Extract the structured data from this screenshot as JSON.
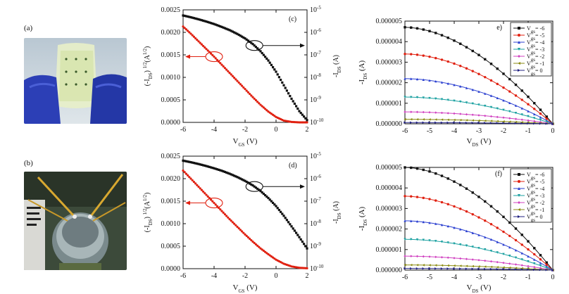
{
  "photos": [
    {
      "tag": "(a)",
      "description_icon": "flexible-device-photo"
    },
    {
      "tag": "(b)",
      "description_icon": "bent-device-probe-photo"
    }
  ],
  "chart_data": [
    {
      "id": "c",
      "panel_label": "(c)",
      "type": "line",
      "xlabel_main": "V",
      "xlabel_sub": "GS",
      "xlabel_unit": " (V)",
      "ylabel_left": "(-I<sub>DS</sub>)<sup>1/2</sup>(A<sup>1/2</sup>)",
      "ylabel_left_plain": "(-I",
      "ylabel_left_sub": "DS",
      "ylabel_left_rest": ")",
      "ylabel_left_sup": "1/2",
      "ylabel_left_unit": "(A",
      "ylabel_left_unit_sup": "1/2",
      "ylabel_left_unit_end": ")",
      "ylabel_right_main": "-I",
      "ylabel_right_sub": "DS",
      "ylabel_right_unit": " (A)",
      "xlim": [
        -6,
        2
      ],
      "xticks": [
        "-6",
        "-4",
        "-2",
        "0",
        "2"
      ],
      "ylim_left": [
        0,
        0.0025
      ],
      "yticks_left": [
        "0.0000",
        "0.0005",
        "0.0010",
        "0.0015",
        "0.0020",
        "0.0025"
      ],
      "yticks_right_exp": [
        "-10",
        "-9",
        "-8",
        "-7",
        "-6",
        "-5"
      ],
      "ylim_right_log": [
        -10,
        -5
      ],
      "series": [
        {
          "color": "#e02010",
          "axis": "left",
          "x": [
            -6,
            -5.5,
            -5,
            -4.5,
            -4,
            -3.5,
            -3,
            -2.5,
            -2,
            -1.5,
            -1,
            -0.5,
            0,
            0.5,
            1,
            1.5,
            2
          ],
          "y": [
            0.00213,
            0.00197,
            0.0018,
            0.00163,
            0.00146,
            0.00128,
            0.0011,
            0.00092,
            0.00074,
            0.00056,
            0.00039,
            0.00024,
            0.00012,
            4e-05,
            1e-05,
            0.0,
            0.0
          ]
        },
        {
          "color": "#111111",
          "axis": "right_log",
          "x": [
            -6,
            -5.5,
            -5,
            -4.5,
            -4,
            -3.5,
            -3,
            -2.5,
            -2,
            -1.5,
            -1,
            -0.5,
            0,
            0.5,
            1,
            1.5,
            2
          ],
          "y": [
            -5.25,
            -5.33,
            -5.42,
            -5.52,
            -5.63,
            -5.76,
            -5.9,
            -6.07,
            -6.27,
            -6.52,
            -6.84,
            -7.25,
            -7.75,
            -8.35,
            -8.95,
            -9.5,
            -9.9
          ]
        }
      ]
    },
    {
      "id": "d",
      "panel_label": "(d)",
      "type": "line",
      "xlabel_main": "V",
      "xlabel_sub": "GS",
      "xlabel_unit": " (V)",
      "ylabel_left_plain": "(-I",
      "ylabel_left_sub": "DS",
      "ylabel_left_rest": ")",
      "ylabel_left_sup": "1/2",
      "ylabel_left_unit": "(A",
      "ylabel_left_unit_sup": "1/2",
      "ylabel_left_unit_end": ")",
      "ylabel_right_main": "-I",
      "ylabel_right_sub": "DS",
      "ylabel_right_unit": " (A)",
      "xlim": [
        -6,
        2
      ],
      "xticks": [
        "-6",
        "-4",
        "-2",
        "0",
        "2"
      ],
      "ylim_left": [
        0,
        0.0025
      ],
      "yticks_left": [
        "0.0000",
        "0.0005",
        "0.0010",
        "0.0015",
        "0.0020",
        "0.0025"
      ],
      "yticks_right_exp": [
        "-10",
        "-9",
        "-8",
        "-7",
        "-6",
        "-5"
      ],
      "ylim_right_log": [
        -10,
        -5
      ],
      "series": [
        {
          "color": "#e02010",
          "axis": "left",
          "x": [
            -6,
            -5.5,
            -5,
            -4.5,
            -4,
            -3.5,
            -3,
            -2.5,
            -2,
            -1.5,
            -1,
            -0.5,
            0,
            0.5,
            1,
            1.5,
            2
          ],
          "y": [
            0.00218,
            0.002,
            0.00182,
            0.00164,
            0.00146,
            0.00128,
            0.0011,
            0.00093,
            0.00076,
            0.0006,
            0.00045,
            0.00032,
            0.0002,
            0.00011,
            5e-05,
            2e-05,
            1e-05
          ]
        },
        {
          "color": "#111111",
          "axis": "right_log",
          "x": [
            -6,
            -5.5,
            -5,
            -4.5,
            -4,
            -3.5,
            -3,
            -2.5,
            -2,
            -1.5,
            -1,
            -0.5,
            0,
            0.5,
            1,
            1.5,
            2
          ],
          "y": [
            -5.2,
            -5.27,
            -5.35,
            -5.44,
            -5.54,
            -5.65,
            -5.78,
            -5.93,
            -6.1,
            -6.3,
            -6.55,
            -6.86,
            -7.22,
            -7.65,
            -8.12,
            -8.6,
            -9.1
          ]
        }
      ]
    },
    {
      "id": "e",
      "panel_label": "e)",
      "type": "line",
      "xlabel_main": "V",
      "xlabel_sub": "DS",
      "xlabel_unit": " (V)",
      "ylabel_main": "-I",
      "ylabel_sub": "DS",
      "ylabel_unit": " (A)",
      "xlim": [
        -6,
        0
      ],
      "xticks": [
        "-6",
        "-5",
        "-4",
        "-3",
        "-2",
        "-1",
        "0"
      ],
      "ylim": [
        0,
        5e-06
      ],
      "yticks": [
        "0.000000",
        "0.000001",
        "0.000002",
        "0.000003",
        "0.000004",
        "0.000005"
      ],
      "legend_prefix": "V",
      "legend_sub": "gs",
      "series": [
        {
          "name": "= -6",
          "color": "#111111",
          "marker": "square",
          "sat": 4.7e-06
        },
        {
          "name": "= -5",
          "color": "#e02010",
          "marker": "circle",
          "sat": 3.4e-06
        },
        {
          "name": "= -4",
          "color": "#2a3fd0",
          "marker": "triangle-up",
          "sat": 2.2e-06
        },
        {
          "name": "= -3",
          "color": "#1aa0a0",
          "marker": "triangle-down",
          "sat": 1.3e-06
        },
        {
          "name": "= -2",
          "color": "#d040c0",
          "marker": "diamond",
          "sat": 5.8e-07
        },
        {
          "name": "= -1",
          "color": "#8a8a10",
          "marker": "triangle-left",
          "sat": 2.2e-07
        },
        {
          "name": "= 0",
          "color": "#202080",
          "marker": "triangle-right",
          "sat": 6e-08
        }
      ]
    },
    {
      "id": "f",
      "panel_label": "(f)",
      "type": "line",
      "xlabel_main": "V",
      "xlabel_sub": "DS",
      "xlabel_unit": " (V)",
      "ylabel_main": "-I",
      "ylabel_sub": "DS",
      "ylabel_unit": " (A)",
      "xlim": [
        -6,
        0
      ],
      "xticks": [
        "-6",
        "-5",
        "-4",
        "-3",
        "-2",
        "-1",
        "0"
      ],
      "ylim": [
        0,
        5e-06
      ],
      "yticks": [
        "0.000000",
        "0.000001",
        "0.000002",
        "0.000003",
        "0.000004",
        "0.000005"
      ],
      "legend_prefix": "V",
      "legend_sub": "gs",
      "series": [
        {
          "name": "= -6",
          "color": "#111111",
          "marker": "square",
          "sat": 5e-06
        },
        {
          "name": "= -5",
          "color": "#e02010",
          "marker": "circle",
          "sat": 3.6e-06
        },
        {
          "name": "= -4",
          "color": "#2a3fd0",
          "marker": "triangle-up",
          "sat": 2.4e-06
        },
        {
          "name": "= -3",
          "color": "#1aa0a0",
          "marker": "triangle-down",
          "sat": 1.5e-06
        },
        {
          "name": "= -2",
          "color": "#d040c0",
          "marker": "diamond",
          "sat": 6.8e-07
        },
        {
          "name": "= -1",
          "color": "#8a8a10",
          "marker": "triangle-left",
          "sat": 2.5e-07
        },
        {
          "name": "= 0",
          "color": "#202080",
          "marker": "triangle-right",
          "sat": 8e-08
        }
      ]
    }
  ]
}
